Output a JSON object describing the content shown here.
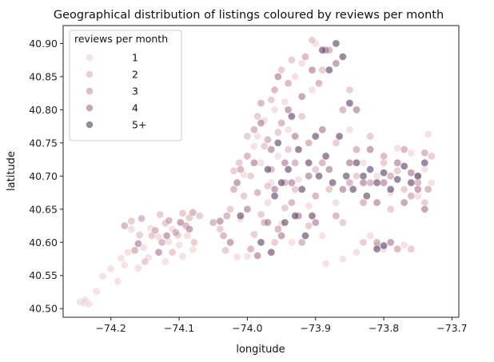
{
  "chart_data": {
    "type": "scatter",
    "title": "Geographical distribution of listings coloured by reviews per month",
    "xlabel": "longitude",
    "ylabel": "latitude",
    "xlim": [
      -74.27,
      -73.69
    ],
    "ylim": [
      40.487,
      40.927
    ],
    "x_ticks": [
      -74.2,
      -74.1,
      -74.0,
      -73.9,
      -73.8,
      -73.7
    ],
    "x_tick_labels": [
      "−74.2",
      "−74.1",
      "−74.0",
      "−73.9",
      "−73.8",
      "−73.7"
    ],
    "y_ticks": [
      40.5,
      40.55,
      40.6,
      40.65,
      40.7,
      40.75,
      40.8,
      40.85,
      40.9
    ],
    "y_tick_labels": [
      "40.50",
      "40.55",
      "40.60",
      "40.65",
      "40.70",
      "40.75",
      "40.80",
      "40.85",
      "40.90"
    ],
    "grid": false,
    "legend": {
      "title": "reviews per month",
      "placement": "top-left",
      "entries": [
        {
          "label": "1",
          "color": "#ecd0cf"
        },
        {
          "label": "2",
          "color": "#dcb0b6"
        },
        {
          "label": "3",
          "color": "#c7909f"
        },
        {
          "label": "4",
          "color": "#a66e8e"
        },
        {
          "label": "5+",
          "color": "#573c5f"
        }
      ]
    },
    "marker_opacity": 0.6,
    "series": [
      {
        "name": "1",
        "color": "#ecd0cf",
        "points": [
          [
            -74.245,
            40.51
          ],
          [
            -74.24,
            40.509
          ],
          [
            -74.238,
            40.513
          ],
          [
            -74.232,
            40.507
          ],
          [
            -74.221,
            40.526
          ],
          [
            -74.212,
            40.549
          ],
          [
            -74.2,
            40.56
          ],
          [
            -74.19,
            40.541
          ],
          [
            -74.185,
            40.576
          ],
          [
            -74.18,
            40.566
          ],
          [
            -74.175,
            40.585
          ],
          [
            -74.17,
            40.62
          ],
          [
            -74.16,
            40.561
          ],
          [
            -74.152,
            40.592
          ],
          [
            -74.145,
            40.577
          ],
          [
            -74.142,
            40.621
          ],
          [
            -74.13,
            40.608
          ],
          [
            -74.12,
            40.571
          ],
          [
            -74.115,
            40.601
          ],
          [
            -74.11,
            40.62
          ],
          [
            -74.1,
            40.596
          ],
          [
            -74.095,
            40.579
          ],
          [
            -74.088,
            40.61
          ],
          [
            -74.08,
            40.589
          ],
          [
            -74.015,
            40.578
          ],
          [
            -74.01,
            40.635
          ],
          [
            -74.005,
            40.702
          ],
          [
            -74.0,
            40.579
          ],
          [
            -73.99,
            40.745
          ],
          [
            -73.985,
            40.76
          ],
          [
            -73.98,
            40.72
          ],
          [
            -73.975,
            40.784
          ],
          [
            -73.97,
            40.66
          ],
          [
            -73.965,
            40.69
          ],
          [
            -73.96,
            40.8
          ],
          [
            -73.955,
            40.73
          ],
          [
            -73.95,
            40.628
          ],
          [
            -73.945,
            40.812
          ],
          [
            -73.94,
            40.77
          ],
          [
            -73.935,
            40.6
          ],
          [
            -73.93,
            40.85
          ],
          [
            -73.925,
            40.695
          ],
          [
            -73.92,
            40.87
          ],
          [
            -73.91,
            40.655
          ],
          [
            -73.905,
            40.83
          ],
          [
            -73.9,
            40.9
          ],
          [
            -73.89,
            40.61
          ],
          [
            -73.885,
            40.568
          ],
          [
            -73.87,
            40.66
          ],
          [
            -73.86,
            40.575
          ],
          [
            -73.85,
            40.77
          ],
          [
            -73.84,
            40.585
          ],
          [
            -73.83,
            40.72
          ],
          [
            -73.82,
            40.61
          ],
          [
            -73.81,
            40.7
          ],
          [
            -73.8,
            40.59
          ],
          [
            -73.79,
            40.675
          ],
          [
            -73.78,
            40.742
          ],
          [
            -73.77,
            40.596
          ],
          [
            -73.76,
            40.735
          ],
          [
            -73.75,
            40.67
          ],
          [
            -73.74,
            40.71
          ],
          [
            -73.735,
            40.763
          ],
          [
            -73.73,
            40.69
          ]
        ]
      },
      {
        "name": "2",
        "color": "#dcb0b6",
        "points": [
          [
            -74.17,
            40.632
          ],
          [
            -74.158,
            40.611
          ],
          [
            -74.15,
            40.571
          ],
          [
            -74.14,
            40.61
          ],
          [
            -74.128,
            40.642
          ],
          [
            -74.12,
            40.629
          ],
          [
            -74.11,
            40.585
          ],
          [
            -74.102,
            40.611
          ],
          [
            -74.095,
            40.644
          ],
          [
            -74.085,
            40.637
          ],
          [
            -74.078,
            40.6
          ],
          [
            -74.07,
            40.64
          ],
          [
            -74.04,
            40.62
          ],
          [
            -74.032,
            40.588
          ],
          [
            -74.025,
            40.65
          ],
          [
            -74.02,
            40.708
          ],
          [
            -74.012,
            40.72
          ],
          [
            -74.005,
            40.67
          ],
          [
            -74.0,
            40.76
          ],
          [
            -73.995,
            40.7
          ],
          [
            -73.99,
            40.612
          ],
          [
            -73.985,
            40.79
          ],
          [
            -73.98,
            40.642
          ],
          [
            -73.975,
            40.745
          ],
          [
            -73.97,
            40.685
          ],
          [
            -73.965,
            40.815
          ],
          [
            -73.96,
            40.6
          ],
          [
            -73.955,
            40.766
          ],
          [
            -73.95,
            40.86
          ],
          [
            -73.945,
            40.652
          ],
          [
            -73.94,
            40.74
          ],
          [
            -73.935,
            40.875
          ],
          [
            -73.93,
            40.68
          ],
          [
            -73.92,
            40.79
          ],
          [
            -73.91,
            40.625
          ],
          [
            -73.905,
            40.905
          ],
          [
            -73.9,
            40.71
          ],
          [
            -73.89,
            40.86
          ],
          [
            -73.88,
            40.68
          ],
          [
            -73.87,
            40.75
          ],
          [
            -73.86,
            40.63
          ],
          [
            -73.85,
            40.83
          ],
          [
            -73.84,
            40.7
          ],
          [
            -73.83,
            40.6
          ],
          [
            -73.82,
            40.76
          ],
          [
            -73.81,
            40.595
          ],
          [
            -73.8,
            40.72
          ],
          [
            -73.79,
            40.65
          ],
          [
            -73.78,
            40.708
          ],
          [
            -73.77,
            40.68
          ],
          [
            -73.76,
            40.59
          ],
          [
            -73.75,
            40.7
          ],
          [
            -73.74,
            40.66
          ],
          [
            -73.73,
            40.73
          ]
        ]
      },
      {
        "name": "3",
        "color": "#c7909f",
        "points": [
          [
            -74.18,
            40.625
          ],
          [
            -74.165,
            40.588
          ],
          [
            -74.155,
            40.636
          ],
          [
            -74.135,
            40.618
          ],
          [
            -74.125,
            40.6
          ],
          [
            -74.115,
            40.633
          ],
          [
            -74.105,
            40.615
          ],
          [
            -74.09,
            40.625
          ],
          [
            -74.08,
            40.645
          ],
          [
            -74.05,
            40.63
          ],
          [
            -74.035,
            40.61
          ],
          [
            -74.03,
            40.64
          ],
          [
            -74.02,
            40.68
          ],
          [
            -74.01,
            40.71
          ],
          [
            -74.0,
            40.73
          ],
          [
            -73.995,
            40.59
          ],
          [
            -73.99,
            40.77
          ],
          [
            -73.985,
            40.675
          ],
          [
            -73.98,
            40.81
          ],
          [
            -73.975,
            40.63
          ],
          [
            -73.97,
            40.755
          ],
          [
            -73.965,
            40.71
          ],
          [
            -73.96,
            40.83
          ],
          [
            -73.955,
            40.62
          ],
          [
            -73.95,
            40.78
          ],
          [
            -73.945,
            40.69
          ],
          [
            -73.94,
            40.84
          ],
          [
            -73.935,
            40.66
          ],
          [
            -73.93,
            40.72
          ],
          [
            -73.92,
            40.6
          ],
          [
            -73.915,
            40.88
          ],
          [
            -73.91,
            40.75
          ],
          [
            -73.9,
            40.67
          ],
          [
            -73.895,
            40.84
          ],
          [
            -73.89,
            40.72
          ],
          [
            -73.88,
            40.89
          ],
          [
            -73.87,
            40.64
          ],
          [
            -73.86,
            40.8
          ],
          [
            -73.85,
            40.69
          ],
          [
            -73.84,
            40.74
          ],
          [
            -73.83,
            40.66
          ],
          [
            -73.82,
            40.69
          ],
          [
            -73.81,
            40.6
          ],
          [
            -73.8,
            40.73
          ],
          [
            -73.79,
            40.7
          ],
          [
            -73.78,
            40.59
          ],
          [
            -73.77,
            40.74
          ],
          [
            -73.76,
            40.67
          ],
          [
            -73.75,
            40.69
          ],
          [
            -73.74,
            40.735
          ],
          [
            -73.735,
            40.68
          ]
        ]
      },
      {
        "name": "4",
        "color": "#a66e8e",
        "points": [
          [
            -74.16,
            40.598
          ],
          [
            -74.13,
            40.585
          ],
          [
            -74.118,
            40.61
          ],
          [
            -74.098,
            40.63
          ],
          [
            -74.085,
            40.62
          ],
          [
            -74.04,
            40.632
          ],
          [
            -74.025,
            40.6
          ],
          [
            -74.015,
            40.69
          ],
          [
            -74.0,
            40.65
          ],
          [
            -73.99,
            40.72
          ],
          [
            -73.985,
            40.58
          ],
          [
            -73.98,
            40.78
          ],
          [
            -73.97,
            40.63
          ],
          [
            -73.965,
            40.74
          ],
          [
            -73.96,
            40.68
          ],
          [
            -73.955,
            40.85
          ],
          [
            -73.95,
            40.61
          ],
          [
            -73.945,
            40.72
          ],
          [
            -73.94,
            40.8
          ],
          [
            -73.935,
            40.69
          ],
          [
            -73.93,
            40.76
          ],
          [
            -73.925,
            40.64
          ],
          [
            -73.92,
            40.82
          ],
          [
            -73.91,
            40.7
          ],
          [
            -73.905,
            40.86
          ],
          [
            -73.9,
            40.63
          ],
          [
            -73.89,
            40.77
          ],
          [
            -73.885,
            40.89
          ],
          [
            -73.88,
            40.71
          ],
          [
            -73.87,
            40.87
          ],
          [
            -73.86,
            40.68
          ],
          [
            -73.85,
            40.72
          ],
          [
            -73.84,
            40.8
          ],
          [
            -73.83,
            40.69
          ],
          [
            -73.82,
            40.74
          ],
          [
            -73.81,
            40.66
          ],
          [
            -73.8,
            40.69
          ],
          [
            -73.79,
            40.6
          ],
          [
            -73.78,
            40.72
          ],
          [
            -73.77,
            40.66
          ],
          [
            -73.76,
            40.705
          ],
          [
            -73.75,
            40.68
          ],
          [
            -73.74,
            40.65
          ]
        ]
      },
      {
        "name": "5+",
        "color": "#573c5f",
        "points": [
          [
            -74.01,
            40.64
          ],
          [
            -73.98,
            40.6
          ],
          [
            -73.97,
            40.71
          ],
          [
            -73.965,
            40.585
          ],
          [
            -73.96,
            40.67
          ],
          [
            -73.955,
            40.75
          ],
          [
            -73.95,
            40.69
          ],
          [
            -73.945,
            40.63
          ],
          [
            -73.94,
            40.71
          ],
          [
            -73.935,
            40.79
          ],
          [
            -73.93,
            40.64
          ],
          [
            -73.925,
            40.74
          ],
          [
            -73.92,
            40.68
          ],
          [
            -73.915,
            40.61
          ],
          [
            -73.91,
            40.72
          ],
          [
            -73.905,
            40.64
          ],
          [
            -73.9,
            40.76
          ],
          [
            -73.895,
            40.7
          ],
          [
            -73.89,
            40.89
          ],
          [
            -73.885,
            40.73
          ],
          [
            -73.88,
            40.86
          ],
          [
            -73.875,
            40.69
          ],
          [
            -73.87,
            40.9
          ],
          [
            -73.865,
            40.76
          ],
          [
            -73.86,
            40.88
          ],
          [
            -73.855,
            40.7
          ],
          [
            -73.85,
            40.81
          ],
          [
            -73.845,
            40.68
          ],
          [
            -73.84,
            40.72
          ],
          [
            -73.83,
            40.7
          ],
          [
            -73.825,
            40.67
          ],
          [
            -73.82,
            40.71
          ],
          [
            -73.81,
            40.69
          ],
          [
            -73.8,
            40.705
          ],
          [
            -73.79,
            40.68
          ],
          [
            -73.78,
            40.695
          ],
          [
            -73.77,
            40.715
          ],
          [
            -73.76,
            40.69
          ],
          [
            -73.75,
            40.7
          ],
          [
            -73.74,
            40.72
          ],
          [
            -73.8,
            40.595
          ],
          [
            -73.81,
            40.59
          ]
        ]
      }
    ]
  }
}
